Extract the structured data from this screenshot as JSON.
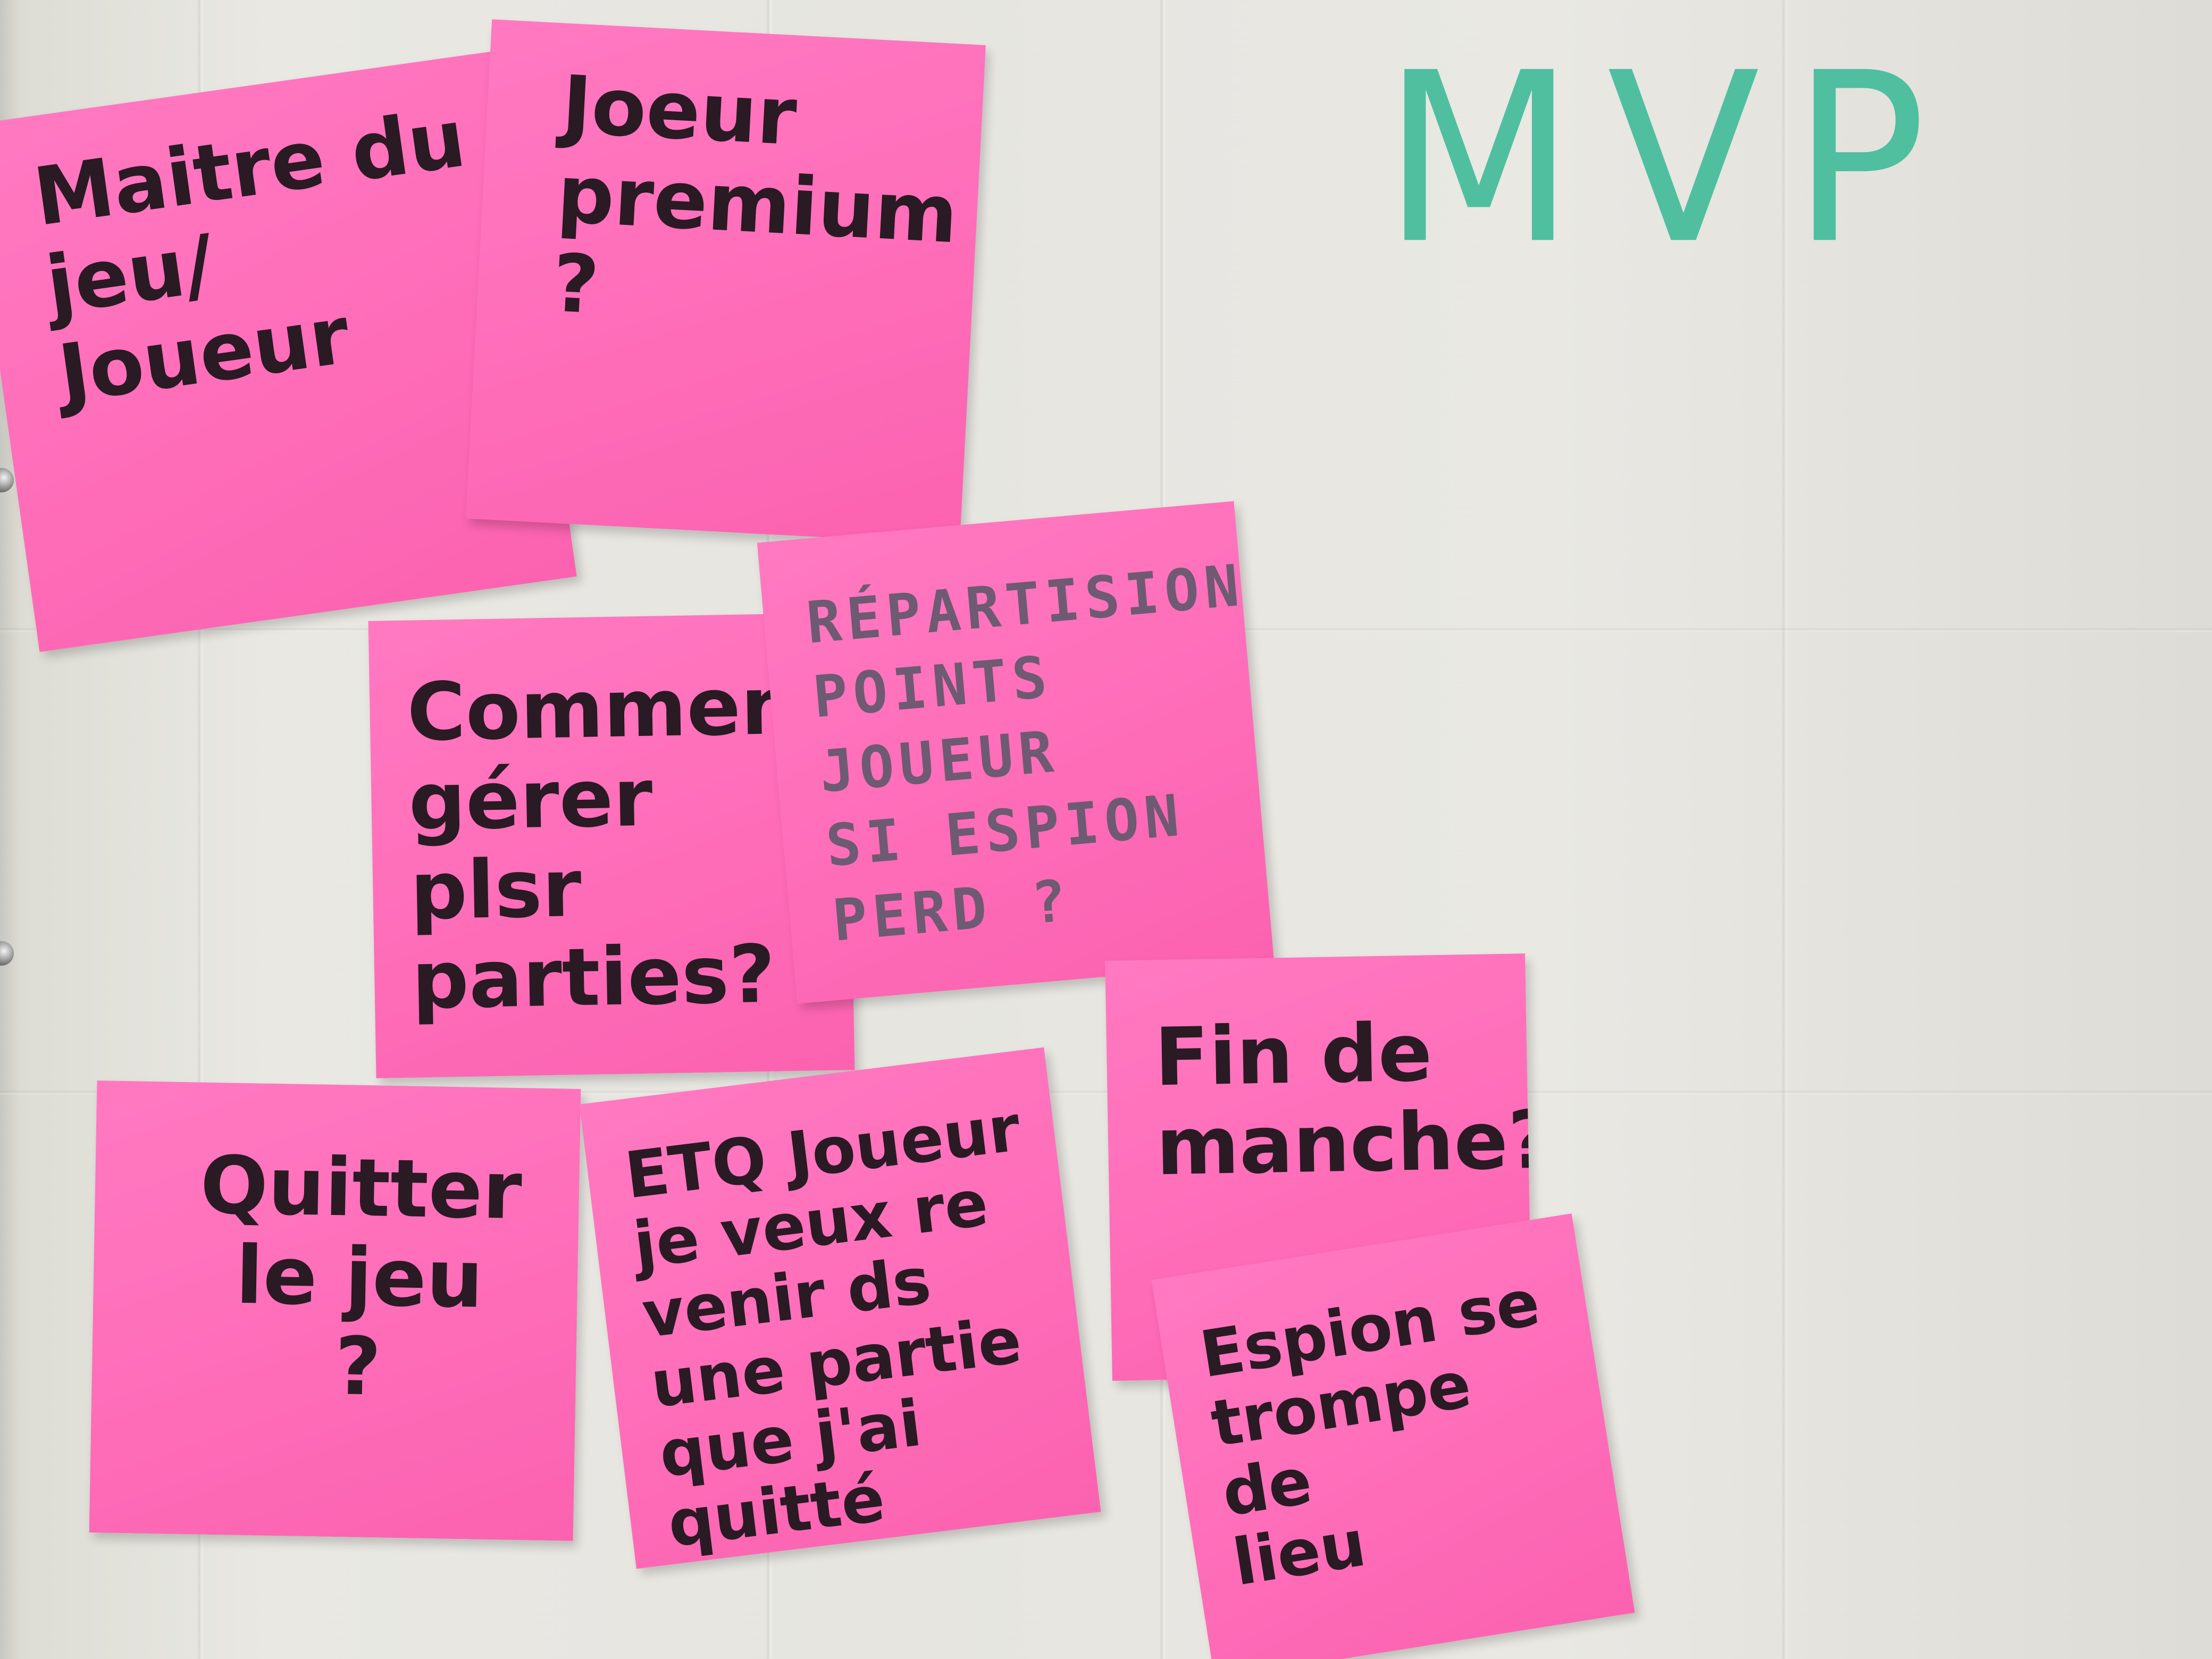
{
  "board": {
    "heading": "MVP",
    "heading_color": "#4fbf9f",
    "note_color": "#ff6fba",
    "notes": [
      {
        "text": "Maitre du\njeu/\nJoueur"
      },
      {
        "text": "Joeur\npremium\n?"
      },
      {
        "text": "Comment\ngérer plsr\nparties?"
      },
      {
        "text": "RÉPARTISION\nPOINTS JOUEUR\nSI ESPION\nPERD ?"
      },
      {
        "text": "Quitter\nle jeu\n?"
      },
      {
        "text": "ETQ Joueur\nje veux re\nvenir ds\nune partie\nque j'ai quitté"
      },
      {
        "text": "Fin de\nmanche?"
      },
      {
        "text": "Espion se\ntrompe de\nlieu"
      }
    ]
  }
}
